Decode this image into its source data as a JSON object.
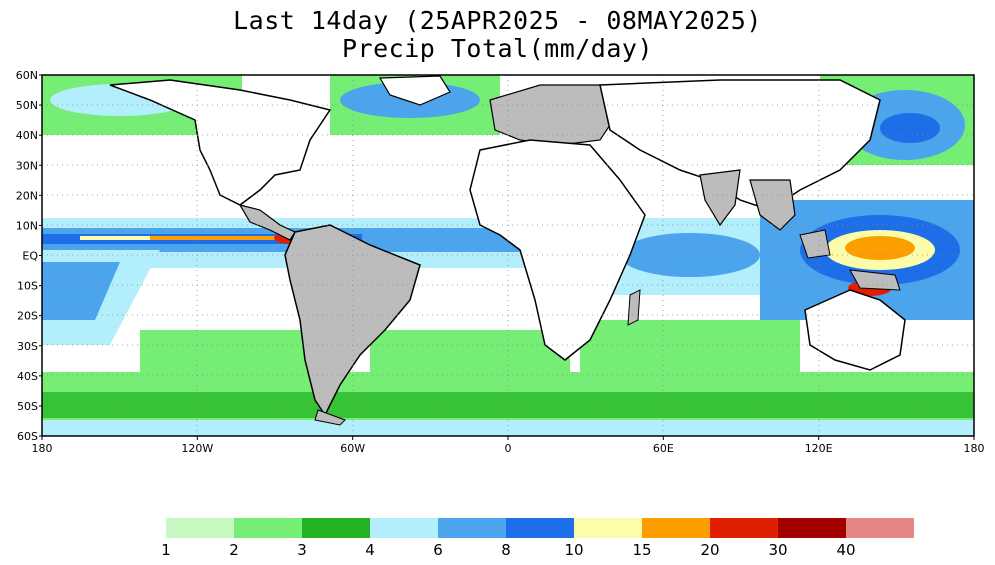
{
  "title": {
    "line1": "Last 14day (25APR2025 - 08MAY2025)",
    "line2": "Precip Total(mm/day)"
  },
  "map": {
    "lat_labels": [
      "60N",
      "50N",
      "40N",
      "30N",
      "20N",
      "10N",
      "EQ",
      "10S",
      "20S",
      "30S",
      "40S",
      "50S",
      "60S"
    ],
    "lon_labels": [
      "180",
      "120W",
      "60W",
      "0",
      "60E",
      "120E",
      "180"
    ],
    "lat_range": [
      -60,
      60
    ],
    "lon_range": [
      -180,
      180
    ],
    "background_color": "#ffffff",
    "land_color": "#bcbcbc",
    "coastline_color": "#000000"
  },
  "colorbar": {
    "colors": [
      "#c6fac2",
      "#76ee76",
      "#22b422",
      "#b2eefc",
      "#4ca4ec",
      "#1e6ee8",
      "#fcfcaa",
      "#fc9e00",
      "#e01e00",
      "#a20000",
      "#e48686"
    ],
    "labels": [
      "1",
      "2",
      "3",
      "4",
      "6",
      "8",
      "10",
      "15",
      "20",
      "30",
      "40"
    ]
  }
}
